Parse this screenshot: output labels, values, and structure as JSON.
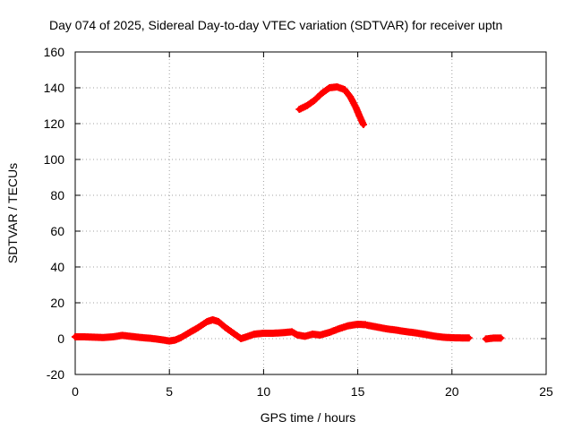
{
  "chart_data": {
    "type": "scatter",
    "title": "Day 074 of 2025, Sidereal Day-to-day VTEC variation (SDTVAR) for receiver uptn",
    "xlabel": "GPS time / hours",
    "ylabel": "SDTVAR / TECUs",
    "xlim": [
      0,
      25
    ],
    "ylim": [
      -20,
      160
    ],
    "xticks": [
      0,
      5,
      10,
      15,
      20,
      25
    ],
    "yticks": [
      -20,
      0,
      20,
      40,
      60,
      80,
      100,
      120,
      140,
      160
    ],
    "grid": true,
    "series_color": "#ff0000",
    "series": [
      {
        "name": "SDTVAR",
        "segments": [
          [
            [
              0,
              1
            ],
            [
              0.5,
              1
            ],
            [
              1,
              0.8
            ],
            [
              1.5,
              0.6
            ],
            [
              2,
              1
            ],
            [
              2.5,
              1.8
            ],
            [
              3,
              1.2
            ],
            [
              3.5,
              0.6
            ],
            [
              4,
              0.2
            ],
            [
              4.5,
              -0.5
            ],
            [
              5,
              -1.3
            ],
            [
              5.3,
              -0.8
            ],
            [
              5.6,
              0.5
            ],
            [
              6,
              3
            ],
            [
              6.5,
              6
            ],
            [
              7,
              9.5
            ],
            [
              7.3,
              10.5
            ],
            [
              7.6,
              9.5
            ],
            [
              8,
              6
            ],
            [
              8.4,
              3
            ],
            [
              8.8,
              0
            ],
            [
              9.1,
              1
            ],
            [
              9.5,
              2.5
            ],
            [
              10,
              3
            ],
            [
              10.5,
              3
            ],
            [
              11,
              3.3
            ],
            [
              11.5,
              3.8
            ],
            [
              11.8,
              2
            ],
            [
              12.2,
              1.3
            ],
            [
              12.6,
              2.5
            ],
            [
              13,
              2
            ],
            [
              13.5,
              3.5
            ],
            [
              14,
              5.5
            ],
            [
              14.5,
              7.2
            ],
            [
              15,
              8
            ],
            [
              15.4,
              7.8
            ]
          ],
          [
            [
              15.5,
              7.5
            ],
            [
              16,
              6.5
            ],
            [
              16.5,
              5.5
            ],
            [
              17,
              4.8
            ],
            [
              17.5,
              4
            ],
            [
              18,
              3.3
            ],
            [
              18.5,
              2.5
            ],
            [
              19,
              1.5
            ],
            [
              19.5,
              0.8
            ],
            [
              20,
              0.5
            ],
            [
              20.5,
              0.4
            ],
            [
              20.9,
              0.4
            ]
          ],
          [
            [
              21.8,
              -0.2
            ],
            [
              22.2,
              0.3
            ],
            [
              22.6,
              0.3
            ]
          ],
          [
            [
              11.9,
              128
            ],
            [
              12.3,
              130
            ],
            [
              12.7,
              133
            ],
            [
              13.1,
              137
            ],
            [
              13.5,
              140
            ],
            [
              13.9,
              140.5
            ],
            [
              14.3,
              139
            ],
            [
              14.6,
              135
            ],
            [
              14.9,
              129
            ],
            [
              15.1,
              124
            ],
            [
              15.3,
              119.5
            ]
          ]
        ]
      }
    ]
  }
}
